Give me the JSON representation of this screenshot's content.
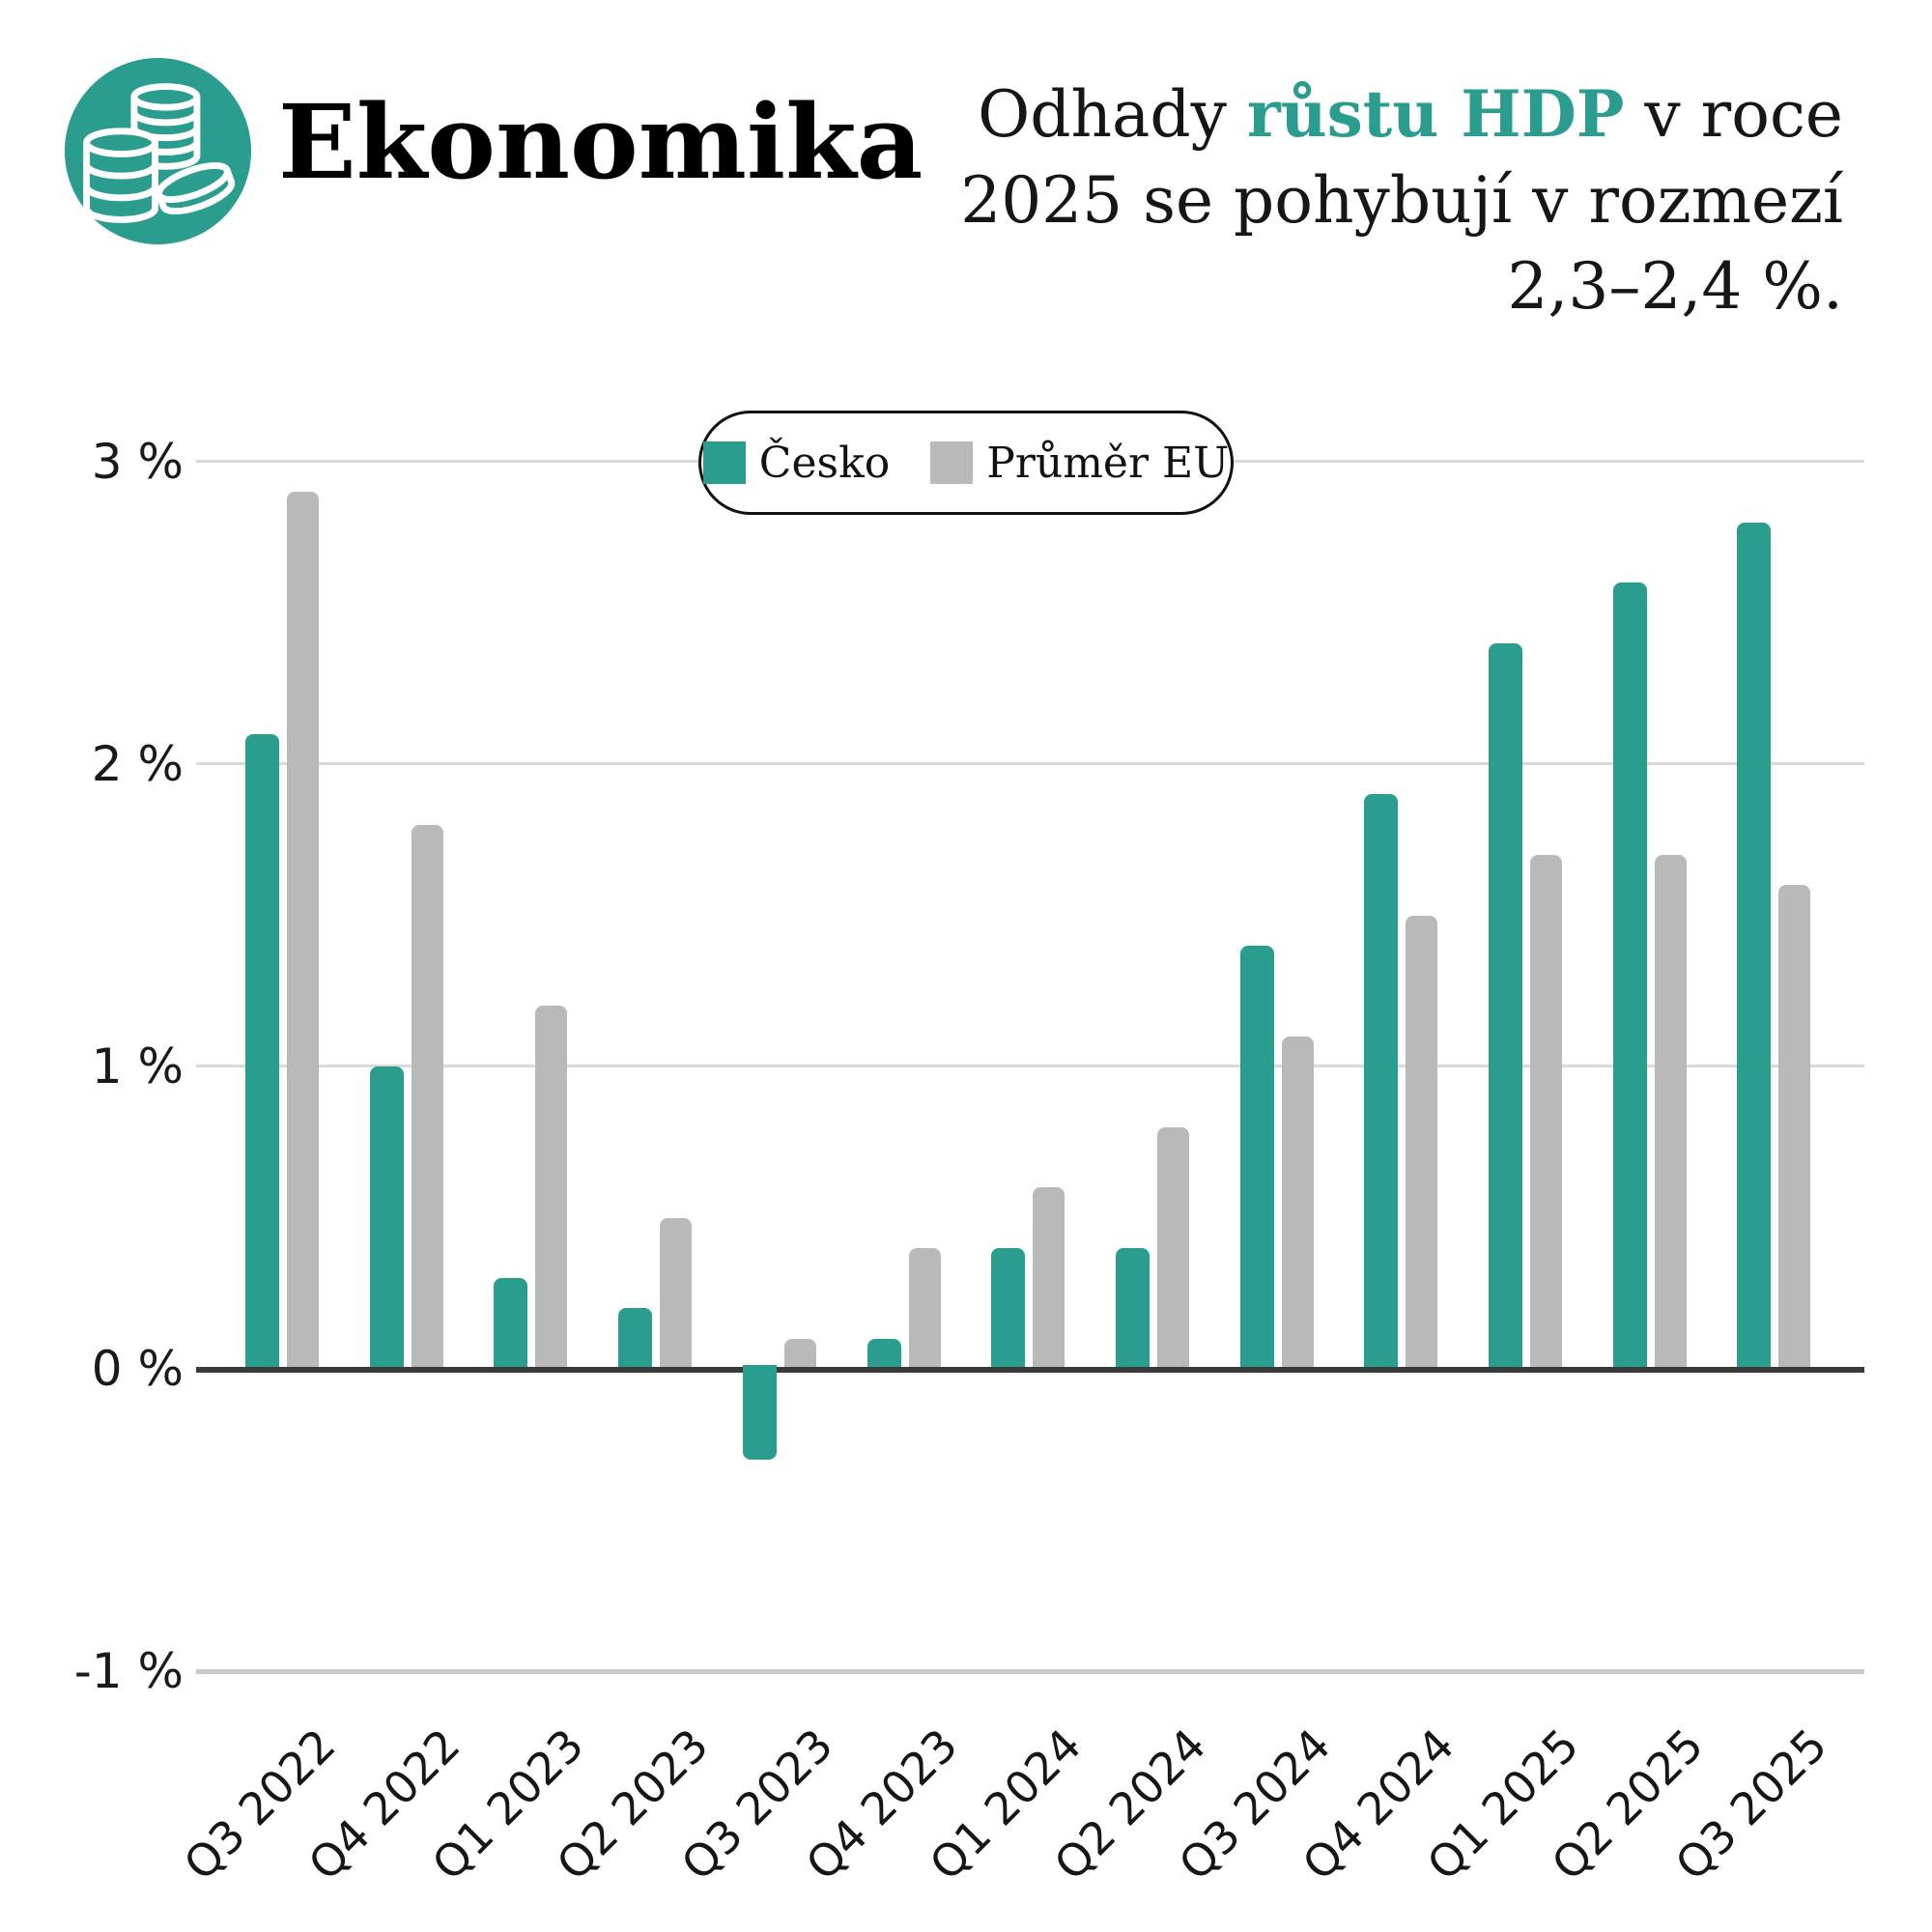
{
  "page": {
    "background": "#ffffff"
  },
  "header": {
    "category_label": "Ekonomika",
    "icon_name": "coins-icon",
    "headline": {
      "line1_pre": "Odhady ",
      "line1_highlight": "růstu HDP",
      "line1_post": " v roce",
      "line2": "2025 se pohybují v rozmezí",
      "line3": "2,3–2,4 %."
    }
  },
  "colors": {
    "accent_teal": "#2a9d8f",
    "bar_gray": "#b9b9b9",
    "grid_light": "#d9d9d9",
    "grid_minus": "#c9c9c9",
    "axis_dark": "#3a3a3a",
    "text_black": "#111111"
  },
  "chart_data": {
    "type": "bar",
    "title": "",
    "categories": [
      "Q3 2022",
      "Q4 2022",
      "Q1 2023",
      "Q2 2023",
      "Q3 2023",
      "Q4 2023",
      "Q1 2024",
      "Q2 2024",
      "Q3 2024",
      "Q4 2024",
      "Q1 2025",
      "Q2 2025",
      "Q3 2025"
    ],
    "series": [
      {
        "name": "Česko",
        "color": "#2a9d8f",
        "values": [
          2.1,
          1.0,
          0.3,
          0.2,
          -0.3,
          0.1,
          0.4,
          0.4,
          1.4,
          1.9,
          2.4,
          2.6,
          2.8
        ]
      },
      {
        "name": "Průměr EU",
        "color": "#b9b9b9",
        "values": [
          2.9,
          1.8,
          1.2,
          0.5,
          0.1,
          0.4,
          0.6,
          0.8,
          1.1,
          1.5,
          1.7,
          1.7,
          1.6
        ]
      }
    ],
    "xlabel": "",
    "ylabel": "",
    "unit": "%",
    "ylim": [
      -1,
      3
    ],
    "y_ticks": [
      {
        "label": "3 %",
        "value": 3
      },
      {
        "label": "2 %",
        "value": 2
      },
      {
        "label": "1 %",
        "value": 1
      },
      {
        "label": "0 %",
        "value": 0
      },
      {
        "label": "-1 %",
        "value": -1
      }
    ],
    "grid": true,
    "legend_position": "top-center"
  }
}
